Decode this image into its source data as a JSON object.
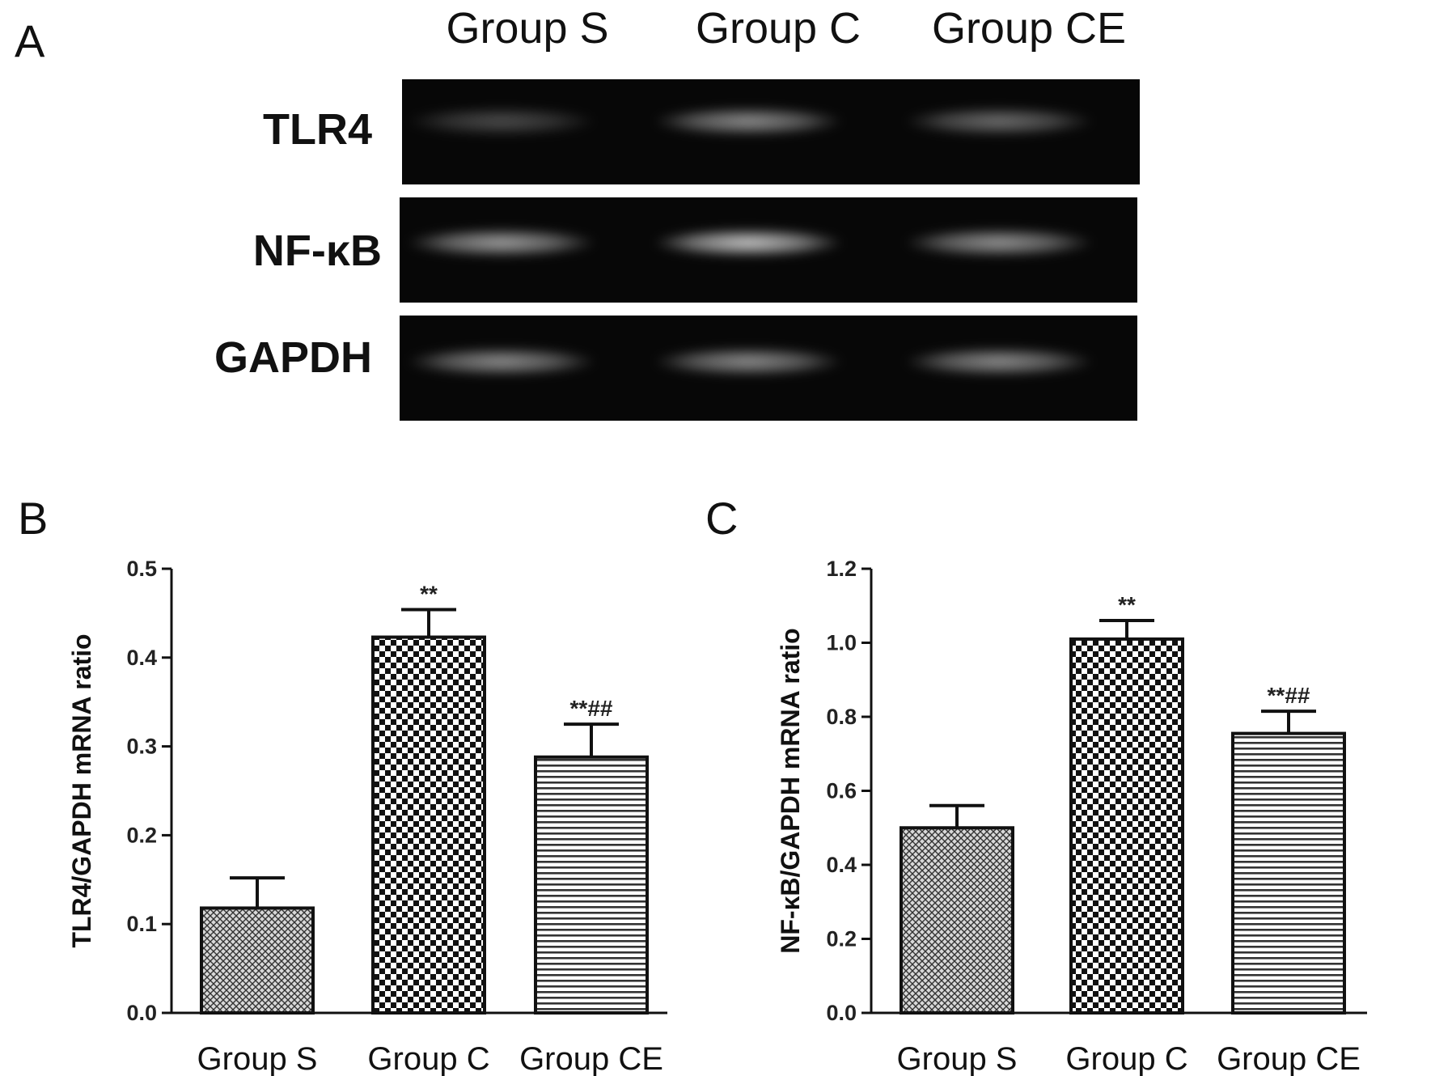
{
  "panel_a": {
    "letter": "A",
    "lanes": [
      "Group S",
      "Group C",
      "Group CE"
    ],
    "bands": [
      {
        "label": "TLR4",
        "intensity": [
          0.28,
          0.55,
          0.42
        ]
      },
      {
        "label": "NF-κB",
        "intensity": [
          0.62,
          0.78,
          0.58
        ]
      },
      {
        "label": "GAPDH",
        "intensity": [
          0.55,
          0.55,
          0.55
        ]
      }
    ]
  },
  "chart_data": [
    {
      "letter": "B",
      "type": "bar",
      "categories": [
        "Group S",
        "Group C",
        "Group CE"
      ],
      "values": [
        0.118,
        0.423,
        0.288
      ],
      "errors": [
        0.034,
        0.031,
        0.037
      ],
      "significance": [
        "",
        "**",
        "**##"
      ],
      "ylabel": "TLR4/GAPDH mRNA ratio",
      "ylim": [
        0,
        0.5
      ],
      "yticks": [
        "0.0",
        "0.1",
        "0.2",
        "0.3",
        "0.4",
        "0.5"
      ],
      "patterns": [
        "crosshatch",
        "checker",
        "hlines"
      ]
    },
    {
      "letter": "C",
      "type": "bar",
      "categories": [
        "Group S",
        "Group C",
        "Group CE"
      ],
      "values": [
        0.5,
        1.01,
        0.755
      ],
      "errors": [
        0.06,
        0.05,
        0.06
      ],
      "significance": [
        "",
        "**",
        "**##"
      ],
      "ylabel": "NF-κB/GAPDH mRNA ratio",
      "ylim": [
        0,
        1.2
      ],
      "yticks": [
        "0.0",
        "0.2",
        "0.4",
        "0.6",
        "0.8",
        "1.0",
        "1.2"
      ],
      "patterns": [
        "crosshatch",
        "checker",
        "hlines"
      ]
    }
  ]
}
